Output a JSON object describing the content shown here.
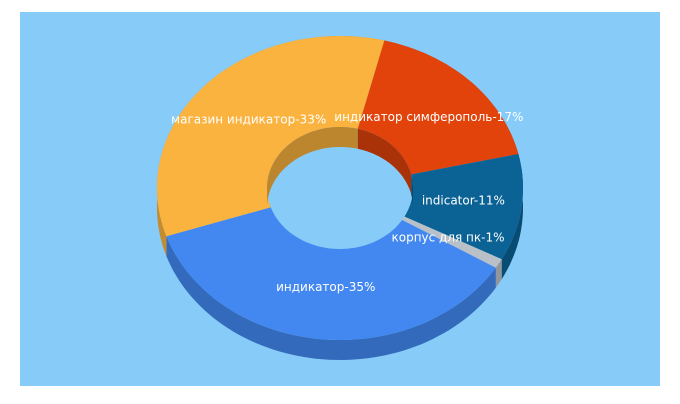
{
  "chart_data": {
    "type": "pie",
    "values": [
      17,
      11,
      1,
      35,
      33
    ],
    "value_labels": [
      "индикатор симферополь-17%",
      "indicator-11%",
      "корпус для пк-1%",
      "индикатор-35%",
      "магазин индикатор-33%"
    ],
    "colors": [
      "#e2430b",
      "#0b6294",
      "#b9c0c7",
      "#4388f0",
      "#fab33f"
    ],
    "donut": true,
    "three_d": true
  }
}
